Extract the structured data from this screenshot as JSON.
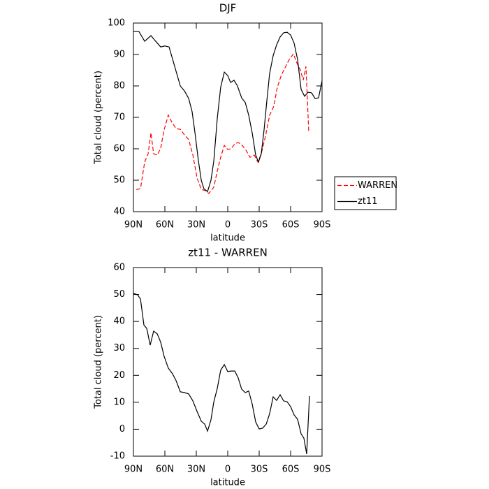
{
  "chart_data": [
    {
      "type": "line",
      "title": "DJF",
      "xlabel": "latitude",
      "ylabel": "Total cloud (percent)",
      "xlim": [
        90,
        -90
      ],
      "ylim": [
        40,
        100
      ],
      "xticks": [
        {
          "value": 90,
          "label": "90N"
        },
        {
          "value": 60,
          "label": "60N"
        },
        {
          "value": 30,
          "label": "30N"
        },
        0,
        {
          "value": -30,
          "label": "30S"
        },
        {
          "value": -60,
          "label": "60S"
        },
        {
          "value": -90,
          "label": "90S"
        }
      ],
      "yticks": [
        40,
        50,
        60,
        70,
        80,
        90,
        100
      ],
      "legend": "right",
      "series": [
        {
          "name": "WARREN",
          "color": "#ff0000",
          "line_style": "dashed",
          "x": [
            87.3,
            83.3,
            79.3,
            76,
            73.3,
            70.7,
            67.3,
            64,
            60.7,
            56.7,
            53.3,
            49.3,
            45.3,
            41.3,
            37.3,
            33.3,
            29.3,
            25.3,
            21.3,
            18,
            13.3,
            10,
            6.7,
            3.3,
            0,
            -3.3,
            -6.7,
            -10,
            -13.3,
            -17.3,
            -21.3,
            -25.3,
            -28.7,
            -32,
            -36,
            -40,
            -44,
            -47.3,
            -51.3,
            -55.3,
            -58.7,
            -62.7,
            -66,
            -69.3,
            -72,
            -74.7,
            -77.3
          ],
          "values": [
            47.1,
            47.3,
            55.8,
            58.4,
            65.1,
            58.4,
            58,
            60.2,
            66,
            70.7,
            68.4,
            66.4,
            66.2,
            64.4,
            62.9,
            58,
            50.7,
            47.1,
            46.7,
            45.8,
            47.8,
            52.9,
            57.3,
            61.1,
            59.8,
            60,
            61.6,
            62,
            61.3,
            59.6,
            57.3,
            58,
            55.8,
            58.4,
            64,
            70.7,
            73.6,
            79.6,
            83.6,
            86.2,
            88.4,
            90.2,
            87.3,
            85.1,
            81.8,
            86.2,
            65.1
          ]
        },
        {
          "name": "zt11",
          "color": "#000000",
          "line_style": "solid",
          "x": [
            90,
            84.7,
            79.3,
            73.3,
            69.3,
            64,
            60,
            56,
            52,
            48.7,
            45.3,
            41.3,
            37.3,
            34,
            31.3,
            28,
            25.3,
            22.7,
            19.3,
            16,
            13.3,
            10,
            6.7,
            3.3,
            0,
            -2.7,
            -6,
            -9.3,
            -13.3,
            -16.7,
            -20,
            -23.3,
            -26.7,
            -29.3,
            -32,
            -34.7,
            -37.3,
            -40,
            -43.3,
            -46.7,
            -50,
            -53.3,
            -56.7,
            -60,
            -63.3,
            -66.7,
            -70,
            -73.3,
            -76.7,
            -80,
            -83.3,
            -86.7,
            -90
          ],
          "values": [
            97.3,
            97.3,
            94.2,
            96,
            94.4,
            92.4,
            92.7,
            92.4,
            87.8,
            84,
            80,
            78.4,
            76,
            71.8,
            65.1,
            56.2,
            50,
            47.3,
            46.4,
            50,
            56.2,
            69.6,
            79.6,
            84.4,
            83.3,
            81.1,
            81.8,
            80,
            76.2,
            74.7,
            70.7,
            65.1,
            58,
            55.8,
            58.4,
            66.2,
            75.1,
            84,
            89.6,
            93.1,
            95.6,
            96.9,
            97.1,
            96.2,
            93.6,
            88.4,
            78.9,
            76.7,
            78,
            77.8,
            76,
            76.2,
            81.6
          ]
        }
      ]
    },
    {
      "type": "line",
      "title": "zt11 - WARREN",
      "xlabel": "latitude",
      "ylabel": "Total cloud (percent)",
      "xlim": [
        90,
        -90
      ],
      "ylim": [
        -10,
        60
      ],
      "xticks": [
        {
          "value": 90,
          "label": "90N"
        },
        {
          "value": 60,
          "label": "60N"
        },
        {
          "value": 30,
          "label": "30N"
        },
        0,
        {
          "value": -30,
          "label": "30S"
        },
        {
          "value": -60,
          "label": "60S"
        },
        {
          "value": -90,
          "label": "90S"
        }
      ],
      "yticks": [
        -10,
        0,
        10,
        20,
        30,
        40,
        50,
        60
      ],
      "color": "#000000",
      "x": [
        90,
        86,
        83.3,
        80,
        77.3,
        74,
        70.7,
        67.3,
        64,
        60.7,
        56.7,
        52.7,
        49.3,
        45.3,
        41.3,
        37.3,
        33.3,
        29.3,
        25.3,
        22,
        19.3,
        16,
        13.3,
        10,
        6.7,
        3.3,
        0,
        -3.3,
        -6.7,
        -10,
        -13.3,
        -16.7,
        -20,
        -23.3,
        -26.7,
        -30,
        -33.3,
        -36.7,
        -40,
        -43.3,
        -46.7,
        -50,
        -53.3,
        -56.7,
        -60,
        -63.3,
        -66.7,
        -70,
        -72.7,
        -75.3,
        -78
      ],
      "values": [
        50.4,
        49.9,
        48.3,
        38.7,
        37.4,
        31.2,
        36.4,
        35.4,
        32.3,
        27.1,
        22.7,
        20.6,
        18,
        13.9,
        13.6,
        13.1,
        10.5,
        6.6,
        3,
        1.9,
        -0.7,
        3.5,
        10.2,
        15.1,
        21.9,
        24,
        21.4,
        21.6,
        21.6,
        19,
        14.9,
        13.6,
        14.2,
        9.4,
        2.7,
        0.1,
        0.4,
        1.9,
        5.8,
        12,
        10.7,
        12.8,
        10.5,
        10.2,
        8.4,
        5.3,
        3.7,
        -1.7,
        -3.3,
        -9.2,
        12.3
      ]
    }
  ]
}
